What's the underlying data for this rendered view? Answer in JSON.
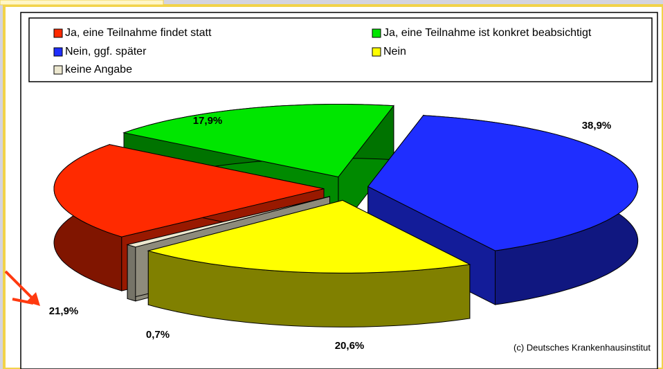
{
  "chart_data": {
    "type": "pie",
    "categories": [
      "Ja, eine Teilnahme findet statt",
      "Ja, eine Teilnahme ist konkret beabsichtigt",
      "Nein,  ggf. später",
      "Nein",
      "keine Angabe"
    ],
    "values": [
      21.9,
      17.9,
      38.9,
      20.6,
      0.7
    ],
    "value_labels": [
      "21,9%",
      "17,9%",
      "38,9%",
      "20,6%",
      "0,7%"
    ],
    "colors": [
      "#ff2a00",
      "#00e600",
      "#1f2eff",
      "#ffff00",
      "#ece7cf"
    ],
    "annotation": "(c) Deutsches Krankenhausinstitut"
  }
}
